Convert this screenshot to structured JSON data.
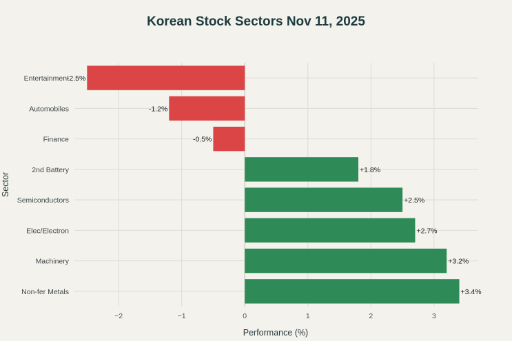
{
  "colors": {
    "negative": "#db4545",
    "positive": "#2e8b57"
  },
  "chart_data": {
    "type": "bar",
    "orientation": "horizontal",
    "title": "Korean Stock Sectors Nov 11, 2025",
    "xlabel": "Performance (%)",
    "ylabel": "Sector",
    "xlim": [
      -2.7,
      3.7
    ],
    "xticks": [
      -2,
      -1,
      0,
      1,
      2,
      3
    ],
    "xtick_labels": [
      "−2",
      "−1",
      "0",
      "1",
      "2",
      "3"
    ],
    "grid": true,
    "categories": [
      "Entertainment",
      "Automobiles",
      "Finance",
      "2nd Battery",
      "Semiconductors",
      "Elec/Electron",
      "Machinery",
      "Non-fer Metals"
    ],
    "values": [
      -2.5,
      -1.2,
      -0.5,
      1.8,
      2.5,
      2.7,
      3.2,
      3.4
    ],
    "data_labels": [
      "-2.5%",
      "-1.2%",
      "-0.5%",
      "+1.8%",
      "+2.5%",
      "+2.7%",
      "+3.2%",
      "+3.4%"
    ]
  }
}
